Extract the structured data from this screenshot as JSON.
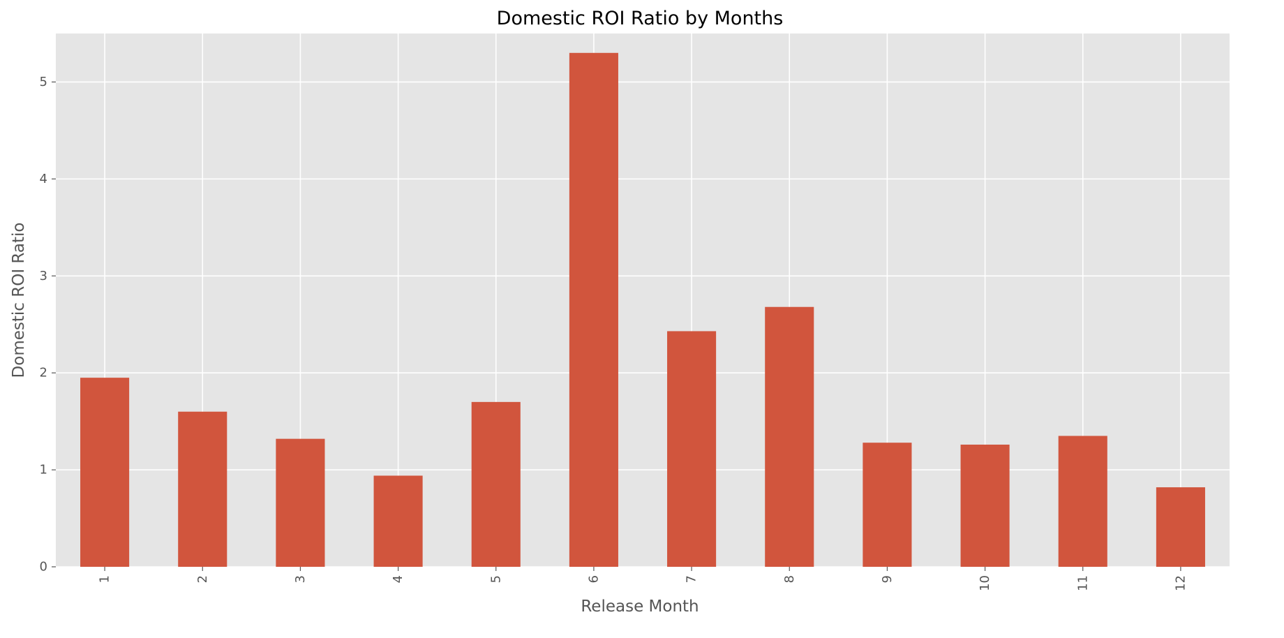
{
  "chart_data": {
    "type": "bar",
    "title": "Domestic ROI Ratio by Months",
    "xlabel": "Release Month",
    "ylabel": "Domestic ROI Ratio",
    "categories": [
      "1",
      "2",
      "3",
      "4",
      "5",
      "6",
      "7",
      "8",
      "9",
      "10",
      "11",
      "12"
    ],
    "values": [
      1.95,
      1.6,
      1.32,
      0.94,
      1.7,
      5.3,
      2.43,
      2.68,
      1.28,
      1.26,
      1.35,
      0.82
    ],
    "ylim": [
      0,
      5.5
    ],
    "yticks": [
      0,
      1,
      2,
      3,
      4,
      5
    ],
    "grid": true,
    "legend": "none",
    "x_tick_rotation": "vertical"
  },
  "colors": {
    "bar": "#d1553d",
    "plot_background": "#e5e5e5",
    "grid": "#ffffff",
    "text": "#555555",
    "title": "#000000"
  }
}
